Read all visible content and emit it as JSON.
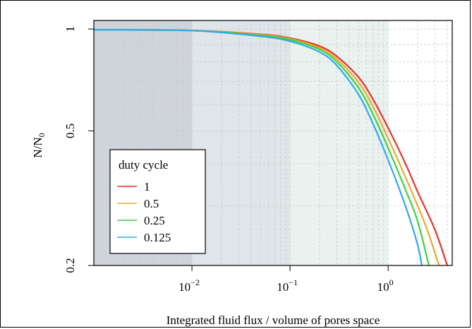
{
  "chart_data": {
    "type": "line",
    "title": "",
    "xlabel": "Integrated fluid flux / volume of pores space",
    "ylabel": "N/N",
    "ylabel_sub": "0",
    "xscale": "log",
    "yscale": "log",
    "xlim": [
      0.001,
      4.5
    ],
    "ylim": [
      0.2,
      1.06
    ],
    "grid": true,
    "x_ticks": [
      {
        "base": "10",
        "exp": "−2",
        "value": 0.01
      },
      {
        "base": "10",
        "exp": "−1",
        "value": 0.1
      },
      {
        "base": "10",
        "exp": "0",
        "value": 1
      }
    ],
    "y_ticks": [
      {
        "label": "1",
        "value": 1
      },
      {
        "label": "0.5",
        "value": 0.5
      },
      {
        "label": "0.2",
        "value": 0.2
      }
    ],
    "shaded_bands": [
      {
        "x": [
          0.001,
          0.01
        ],
        "color": "#cfd3da"
      },
      {
        "x": [
          0.01,
          0.1
        ],
        "color": "#dfe5e8"
      },
      {
        "x": [
          0.1,
          1
        ],
        "color": "#e9f2ee"
      }
    ],
    "legend": {
      "title": "duty cycle",
      "position": "bottom-left"
    },
    "series": [
      {
        "name": "1",
        "color": "#e8322c",
        "x": [
          0.001,
          0.01,
          0.05,
          0.1,
          0.2,
          0.3,
          0.5,
          0.7,
          1,
          1.5,
          2,
          3,
          4
        ],
        "y": [
          0.995,
          0.99,
          0.965,
          0.94,
          0.89,
          0.83,
          0.72,
          0.62,
          0.51,
          0.4,
          0.33,
          0.255,
          0.2
        ]
      },
      {
        "name": "0.5",
        "color": "#f0a830",
        "x": [
          0.001,
          0.01,
          0.05,
          0.1,
          0.2,
          0.3,
          0.5,
          0.7,
          1,
          1.5,
          2,
          2.5,
          3.3
        ],
        "y": [
          0.995,
          0.99,
          0.962,
          0.935,
          0.88,
          0.815,
          0.695,
          0.59,
          0.475,
          0.365,
          0.3,
          0.255,
          0.2
        ]
      },
      {
        "name": "0.25",
        "color": "#3cd33c",
        "x": [
          0.001,
          0.01,
          0.05,
          0.1,
          0.2,
          0.3,
          0.5,
          0.7,
          1,
          1.5,
          2,
          2.6
        ],
        "y": [
          0.995,
          0.99,
          0.958,
          0.93,
          0.87,
          0.8,
          0.67,
          0.56,
          0.445,
          0.335,
          0.27,
          0.2
        ]
      },
      {
        "name": "0.125",
        "color": "#2fa8ee",
        "x": [
          0.001,
          0.01,
          0.05,
          0.1,
          0.2,
          0.3,
          0.5,
          0.7,
          1,
          1.5,
          2,
          2.2
        ],
        "y": [
          0.995,
          0.99,
          0.952,
          0.92,
          0.855,
          0.78,
          0.64,
          0.525,
          0.41,
          0.3,
          0.23,
          0.2
        ]
      }
    ]
  }
}
